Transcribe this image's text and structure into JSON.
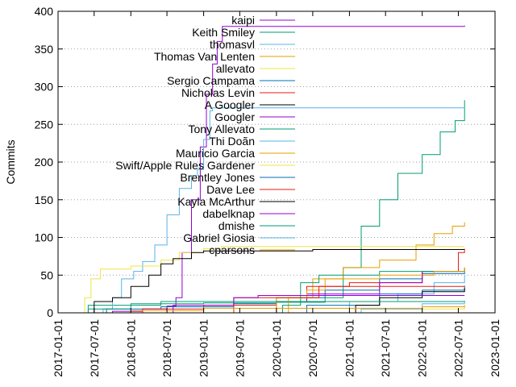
{
  "chart_data": {
    "type": "line",
    "title": "",
    "xlabel": "",
    "ylabel": "Commits",
    "xlim": [
      "2017-01-01",
      "2023-01-01"
    ],
    "ylim": [
      0,
      400
    ],
    "y_ticks": [
      0,
      50,
      100,
      150,
      200,
      250,
      300,
      350,
      400
    ],
    "x_ticks": [
      "2017-01-01",
      "2017-07-01",
      "2018-01-01",
      "2018-07-01",
      "2019-01-01",
      "2019-07-01",
      "2020-01-01",
      "2020-07-01",
      "2021-01-01",
      "2021-07-01",
      "2022-01-01",
      "2022-07-01",
      "2023-01-01"
    ],
    "grid": "horizontal dotted",
    "legend_position": "top-left inside",
    "series": [
      {
        "name": "kaipi",
        "color": "#9400d3",
        "points": [
          [
            "2017-05-01",
            0
          ],
          [
            "2017-10-01",
            2
          ],
          [
            "2018-03-01",
            5
          ],
          [
            "2018-07-01",
            9
          ],
          [
            "2018-08-15",
            20
          ],
          [
            "2018-09-15",
            80
          ],
          [
            "2018-11-01",
            150
          ],
          [
            "2018-12-15",
            220
          ],
          [
            "2019-01-15",
            290
          ],
          [
            "2019-02-15",
            330
          ],
          [
            "2019-03-10",
            360
          ],
          [
            "2019-04-05",
            380
          ],
          [
            "2022-08-01",
            381
          ]
        ]
      },
      {
        "name": "Keith Smiley",
        "color": "#009e73",
        "points": [
          [
            "2017-04-01",
            0
          ],
          [
            "2017-06-01",
            10
          ],
          [
            "2018-01-01",
            12
          ],
          [
            "2019-01-01",
            13
          ],
          [
            "2020-01-01",
            14
          ],
          [
            "2020-09-01",
            20
          ],
          [
            "2020-12-01",
            60
          ],
          [
            "2021-03-01",
            115
          ],
          [
            "2021-06-01",
            150
          ],
          [
            "2021-09-01",
            185
          ],
          [
            "2022-01-01",
            210
          ],
          [
            "2022-04-01",
            240
          ],
          [
            "2022-06-15",
            255
          ],
          [
            "2022-08-01",
            282
          ]
        ]
      },
      {
        "name": "thomasvl",
        "color": "#56b4e9",
        "points": [
          [
            "2017-05-01",
            0
          ],
          [
            "2017-08-15",
            5
          ],
          [
            "2017-10-01",
            20
          ],
          [
            "2017-11-15",
            45
          ],
          [
            "2018-01-15",
            55
          ],
          [
            "2018-03-01",
            68
          ],
          [
            "2018-05-01",
            90
          ],
          [
            "2018-07-01",
            130
          ],
          [
            "2018-09-01",
            165
          ],
          [
            "2018-11-01",
            182
          ],
          [
            "2018-12-01",
            190
          ],
          [
            "2019-01-01",
            230
          ],
          [
            "2019-02-01",
            268
          ],
          [
            "2019-02-15",
            272
          ],
          [
            "2022-08-01",
            272
          ]
        ]
      },
      {
        "name": "Thomas Van Lenten",
        "color": "#e69f00",
        "points": [
          [
            "2020-01-01",
            0
          ],
          [
            "2020-03-01",
            20
          ],
          [
            "2020-07-01",
            45
          ],
          [
            "2020-12-01",
            60
          ],
          [
            "2021-06-01",
            70
          ],
          [
            "2021-12-01",
            90
          ],
          [
            "2022-03-01",
            105
          ],
          [
            "2022-06-01",
            115
          ],
          [
            "2022-08-01",
            120
          ]
        ]
      },
      {
        "name": "allevato",
        "color": "#f0e442",
        "points": [
          [
            "2017-04-01",
            0
          ],
          [
            "2017-05-15",
            20
          ],
          [
            "2017-06-15",
            45
          ],
          [
            "2017-08-01",
            58
          ],
          [
            "2018-01-01",
            62
          ],
          [
            "2018-06-01",
            70
          ],
          [
            "2018-09-01",
            80
          ],
          [
            "2019-01-01",
            85
          ],
          [
            "2019-04-01",
            88
          ],
          [
            "2022-08-01",
            88
          ]
        ]
      },
      {
        "name": "Sergio Campama",
        "color": "#0072b2",
        "points": [
          [
            "2017-05-01",
            0
          ],
          [
            "2017-09-01",
            5
          ],
          [
            "2018-06-01",
            8
          ],
          [
            "2019-06-01",
            12
          ],
          [
            "2020-01-01",
            20
          ],
          [
            "2020-09-01",
            30
          ],
          [
            "2021-06-01",
            45
          ],
          [
            "2022-01-01",
            52
          ],
          [
            "2022-08-01",
            57
          ]
        ]
      },
      {
        "name": "Nicholas Levin",
        "color": "#e51e10",
        "points": [
          [
            "2018-05-01",
            0
          ],
          [
            "2019-06-01",
            10
          ],
          [
            "2020-01-01",
            15
          ],
          [
            "2020-06-01",
            35
          ],
          [
            "2021-01-01",
            40
          ],
          [
            "2022-01-01",
            55
          ],
          [
            "2022-07-01",
            80
          ],
          [
            "2022-08-01",
            85
          ]
        ]
      },
      {
        "name": "A Googler",
        "color": "#000000",
        "points": [
          [
            "2017-06-01",
            0
          ],
          [
            "2017-07-01",
            15
          ],
          [
            "2017-10-01",
            20
          ],
          [
            "2018-01-01",
            35
          ],
          [
            "2018-04-01",
            50
          ],
          [
            "2018-06-01",
            65
          ],
          [
            "2018-08-01",
            72
          ],
          [
            "2018-11-01",
            80
          ],
          [
            "2019-01-01",
            82
          ],
          [
            "2020-07-01",
            84
          ],
          [
            "2022-08-01",
            84
          ]
        ]
      },
      {
        "name": "Googler",
        "color": "#9400d3",
        "points": [
          [
            "2019-06-01",
            0
          ],
          [
            "2020-01-01",
            15
          ],
          [
            "2020-06-01",
            25
          ],
          [
            "2021-06-01",
            40
          ],
          [
            "2022-01-01",
            55
          ],
          [
            "2022-08-01",
            60
          ]
        ]
      },
      {
        "name": "Tony Allevato",
        "color": "#009e73",
        "points": [
          [
            "2019-01-01",
            0
          ],
          [
            "2020-02-01",
            10
          ],
          [
            "2020-05-01",
            40
          ],
          [
            "2020-08-01",
            50
          ],
          [
            "2021-06-01",
            55
          ],
          [
            "2022-08-01",
            57
          ]
        ]
      },
      {
        "name": "Thi Doãn",
        "color": "#56b4e9",
        "points": [
          [
            "2020-03-01",
            0
          ],
          [
            "2021-01-01",
            15
          ],
          [
            "2021-09-01",
            25
          ],
          [
            "2022-03-01",
            40
          ],
          [
            "2022-08-01",
            50
          ]
        ]
      },
      {
        "name": "Mauricio Garcia",
        "color": "#e69f00",
        "points": [
          [
            "2019-07-01",
            0
          ],
          [
            "2020-01-01",
            20
          ],
          [
            "2020-06-01",
            30
          ],
          [
            "2020-09-01",
            45
          ],
          [
            "2021-06-01",
            50
          ],
          [
            "2022-03-01",
            55
          ],
          [
            "2022-08-01",
            60
          ]
        ]
      },
      {
        "name": "Swift/Apple Rules Gardener",
        "color": "#f0e442",
        "points": [
          [
            "2021-03-01",
            0
          ],
          [
            "2022-01-01",
            5
          ],
          [
            "2022-08-01",
            10
          ]
        ]
      },
      {
        "name": "Brentley Jones",
        "color": "#0072b2",
        "points": [
          [
            "2019-09-01",
            0
          ],
          [
            "2020-06-01",
            10
          ],
          [
            "2021-06-01",
            25
          ],
          [
            "2022-01-01",
            30
          ],
          [
            "2022-08-01",
            35
          ]
        ]
      },
      {
        "name": "Dave Lee",
        "color": "#e51e10",
        "points": [
          [
            "2017-09-01",
            0
          ],
          [
            "2018-03-01",
            5
          ],
          [
            "2019-01-01",
            10
          ],
          [
            "2019-06-01",
            20
          ],
          [
            "2020-08-01",
            35
          ],
          [
            "2022-08-01",
            36
          ]
        ]
      },
      {
        "name": "Kayla McArthur",
        "color": "#000000",
        "points": [
          [
            "2020-06-01",
            0
          ],
          [
            "2021-02-01",
            10
          ],
          [
            "2021-06-01",
            20
          ],
          [
            "2022-01-01",
            28
          ],
          [
            "2022-08-01",
            33
          ]
        ]
      },
      {
        "name": "dabelknap",
        "color": "#9400d3",
        "points": [
          [
            "2018-06-01",
            0
          ],
          [
            "2018-08-01",
            10
          ],
          [
            "2019-06-01",
            20
          ],
          [
            "2019-10-01",
            23
          ],
          [
            "2022-08-01",
            23
          ]
        ]
      },
      {
        "name": "dmishe",
        "color": "#009e73",
        "points": [
          [
            "2017-05-01",
            0
          ],
          [
            "2017-06-01",
            5
          ],
          [
            "2018-01-01",
            10
          ],
          [
            "2018-06-01",
            15
          ],
          [
            "2022-08-01",
            16
          ]
        ]
      },
      {
        "name": "Gabriel Giosia",
        "color": "#56b4e9",
        "points": [
          [
            "2020-01-01",
            0
          ],
          [
            "2021-03-01",
            5
          ],
          [
            "2022-01-01",
            12
          ],
          [
            "2022-08-01",
            15
          ]
        ]
      },
      {
        "name": "cparsons",
        "color": "#e69f00",
        "points": [
          [
            "2017-07-01",
            0
          ],
          [
            "2018-01-01",
            3
          ],
          [
            "2019-01-01",
            6
          ],
          [
            "2022-01-01",
            8
          ],
          [
            "2022-08-01",
            10
          ]
        ]
      }
    ]
  }
}
